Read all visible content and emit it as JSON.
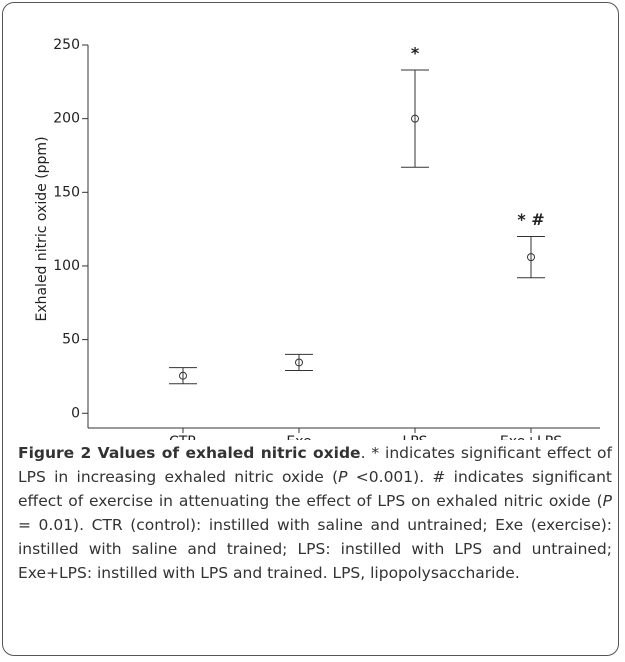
{
  "chart_data": {
    "type": "errorbar",
    "ylabel": "Exhaled nitric oxide (ppm)",
    "categories": [
      "CTR",
      "Exe",
      "LPS",
      "Exe+LPS"
    ],
    "values": [
      25.5,
      34.5,
      200,
      106
    ],
    "errors": [
      5.5,
      5.5,
      33,
      14
    ],
    "annotations": [
      null,
      null,
      "*",
      "* #"
    ],
    "color": "#333333",
    "ylim": [
      -10,
      250
    ],
    "yticks": [
      0,
      50,
      100,
      150,
      200,
      250
    ]
  },
  "caption_segments": [
    {
      "text": "Figure 2 Values of exhaled nitric oxide",
      "style": "bold"
    },
    {
      "text": ". * indicates significant effect of LPS in increasing exhaled nitric oxide (",
      "style": "normal"
    },
    {
      "text": "P",
      "style": "italic"
    },
    {
      "text": " <0.001). # indicates significant effect of exercise in attenuating the effect of LPS on exhaled nitric oxide (",
      "style": "normal"
    },
    {
      "text": "P",
      "style": "italic"
    },
    {
      "text": " = 0.01). CTR (control): instilled with saline and untrained; Exe (exercise): instilled with saline and trained; LPS: instilled with LPS and untrained; Exe+LPS: instilled with LPS and trained. LPS, lipopolysaccharide.",
      "style": "normal"
    }
  ]
}
